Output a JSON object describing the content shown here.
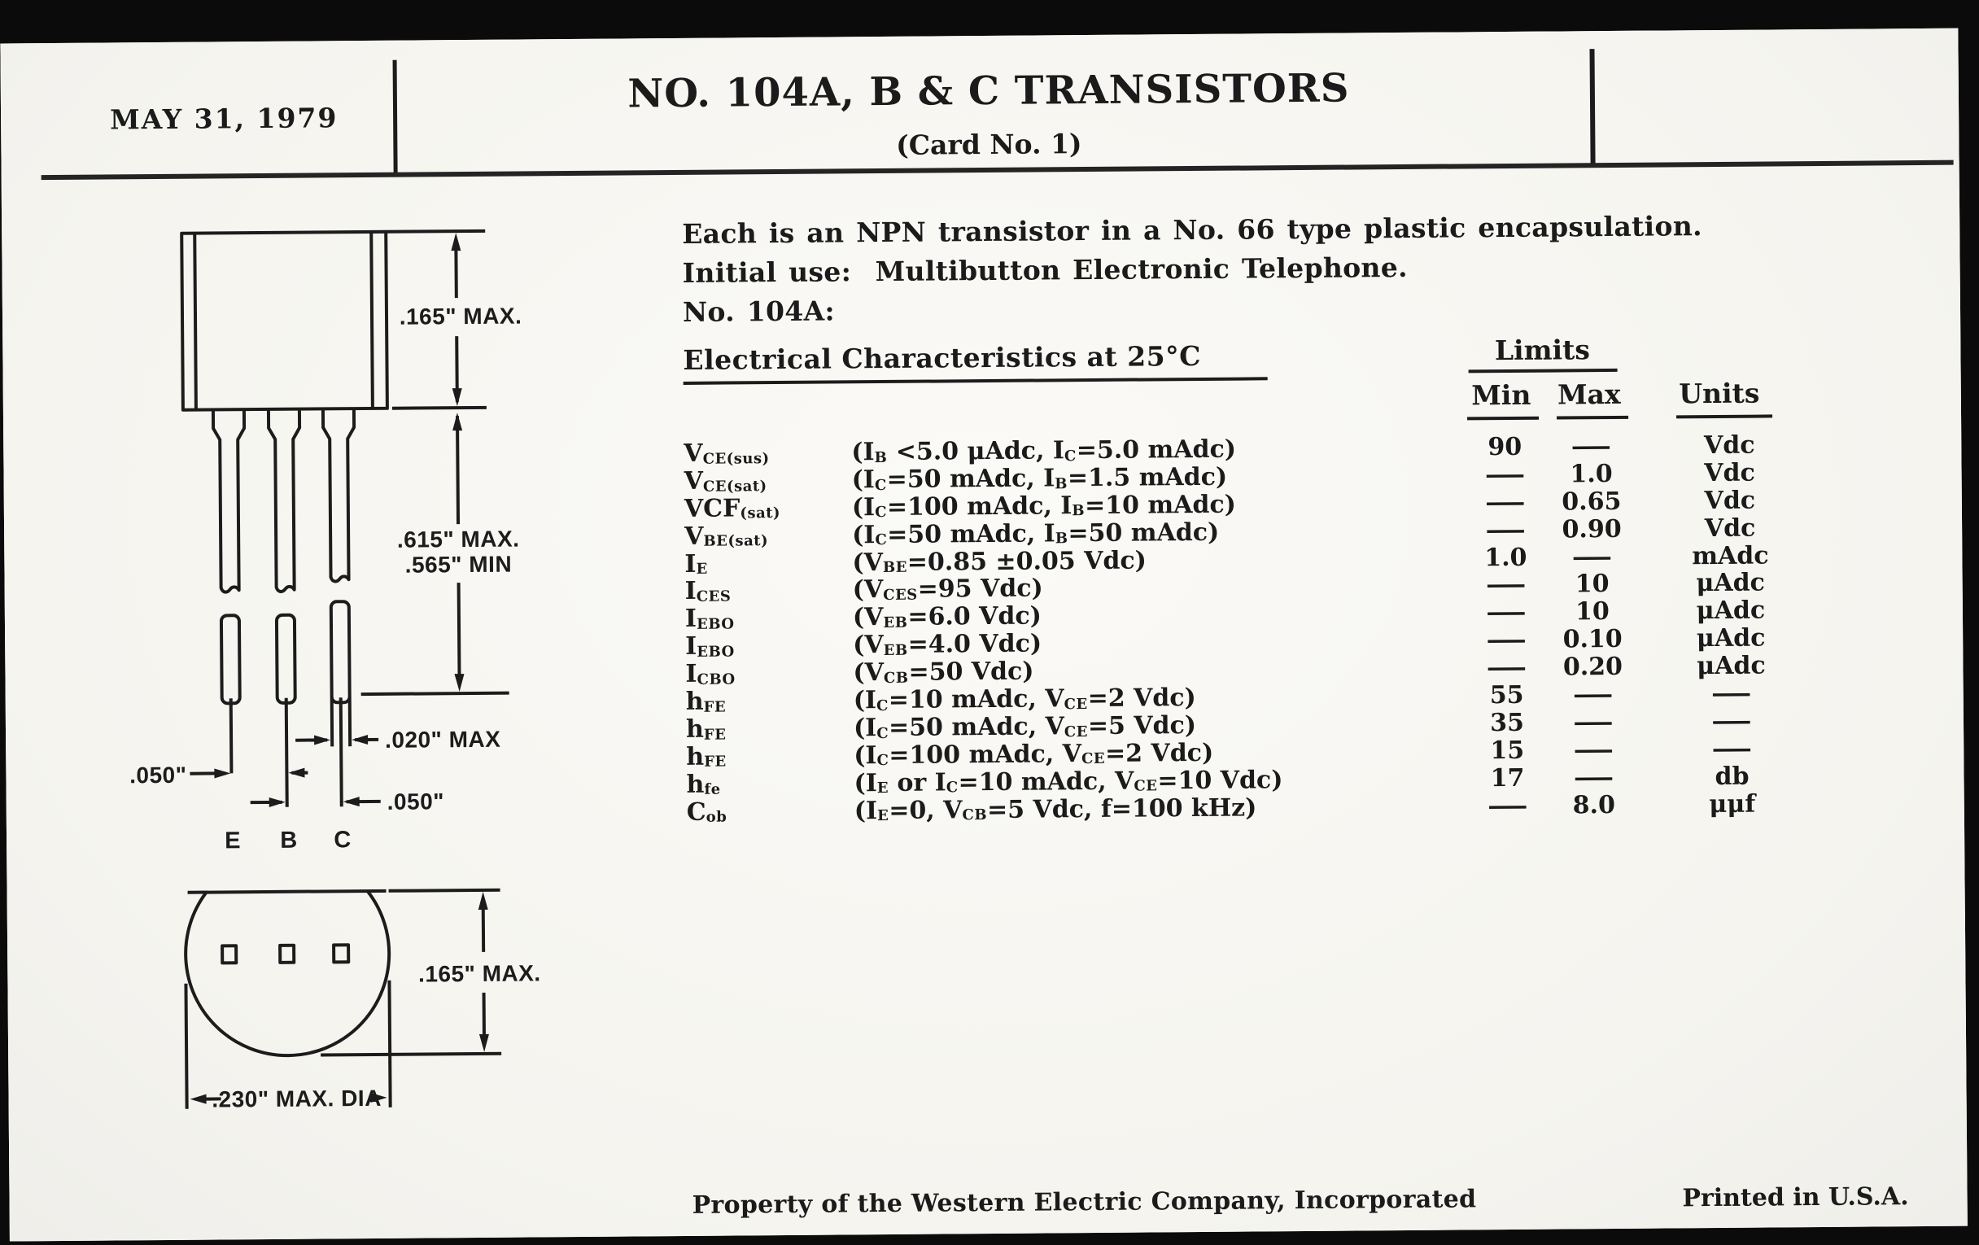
{
  "header": {
    "date": "MAY 31, 1979",
    "title": "NO. 104A, B & C TRANSISTORS",
    "card_no": "(Card No. 1)"
  },
  "intro": {
    "line1": "Each is an NPN transistor in a No. 66 type plastic encapsulation.",
    "line2": "Initial use:  Multibutton Electronic Telephone.",
    "line3": "No. 104A:"
  },
  "table": {
    "section_title": "Electrical Characteristics at 25°C",
    "limits_label": "Limits",
    "min_label": "Min",
    "max_label": "Max",
    "units_label": "Units",
    "rows": [
      {
        "sym": "V~CE(sus)~",
        "cond": "(I~B~ <5.0 μAdc, I~C~=5.0 mAdc)",
        "min": "90",
        "max": "—",
        "units": "Vdc"
      },
      {
        "sym": "V~CE(sat)~",
        "cond": "(I~C~=50 mAdc, I~B~=1.5 mAdc)",
        "min": "—",
        "max": "1.0",
        "units": "Vdc"
      },
      {
        "sym": "VCF~(sat)~",
        "cond": "(I~C~=100 mAdc, I~B~=10 mAdc)",
        "min": "—",
        "max": "0.65",
        "units": "Vdc"
      },
      {
        "sym": "V~BE(sat)~",
        "cond": "(I~C~=50 mAdc, I~B~=50 mAdc)",
        "min": "—",
        "max": "0.90",
        "units": "Vdc"
      },
      {
        "sym": "I~E~",
        "cond": "(V~BE~=0.85 ±0.05 Vdc)",
        "min": "1.0",
        "max": "—",
        "units": "mAdc"
      },
      {
        "sym": "I~CES~",
        "cond": "(V~CES~=95 Vdc)",
        "min": "—",
        "max": "10",
        "units": "μAdc"
      },
      {
        "sym": "I~EBO~",
        "cond": "(V~EB~=6.0 Vdc)",
        "min": "—",
        "max": "10",
        "units": "μAdc"
      },
      {
        "sym": "I~EBO~",
        "cond": "(V~EB~=4.0 Vdc)",
        "min": "—",
        "max": "0.10",
        "units": "μAdc"
      },
      {
        "sym": "I~CBO~",
        "cond": "(V~CB~=50 Vdc)",
        "min": "—",
        "max": "0.20",
        "units": "μAdc"
      },
      {
        "sym": "h~FE~",
        "cond": "(I~C~=10 mAdc, V~CE~=2 Vdc)",
        "min": "55",
        "max": "—",
        "units": "—"
      },
      {
        "sym": "h~FE~",
        "cond": "(I~C~=50 mAdc, V~CE~=5 Vdc)",
        "min": "35",
        "max": "—",
        "units": "—"
      },
      {
        "sym": "h~FE~",
        "cond": "(I~C~=100 mAdc, V~CE~=2 Vdc)",
        "min": "15",
        "max": "—",
        "units": "—"
      },
      {
        "sym": "h~fe~",
        "cond": "(I~E~ or I~C~=10 mAdc, V~CE~=10 Vdc)",
        "min": "17",
        "max": "—",
        "units": "db"
      },
      {
        "sym": "C~ob~",
        "cond": "(I~E~=0, V~CB~=5 Vdc, f=100 kHz)",
        "min": "—",
        "max": "8.0",
        "units": "μμf"
      }
    ]
  },
  "drawing": {
    "front_view": {
      "dim_body_height": ".165\" MAX.",
      "dim_lead_len_max": ".615\" MAX.",
      "dim_lead_len_min": ".565\" MIN",
      "dim_lead_thickness": ".020\" MAX",
      "dim_pitch_eb": ".050\"",
      "dim_pitch_bc": ".050\"",
      "lead_e": "E",
      "lead_b": "B",
      "lead_c": "C"
    },
    "bottom_view": {
      "dim_height": ".165\" MAX.",
      "dim_diameter": ".230\" MAX. DIA"
    }
  },
  "footer": {
    "property": "Property of the Western Electric Company, Incorporated",
    "printed": "Printed in U.S.A."
  }
}
